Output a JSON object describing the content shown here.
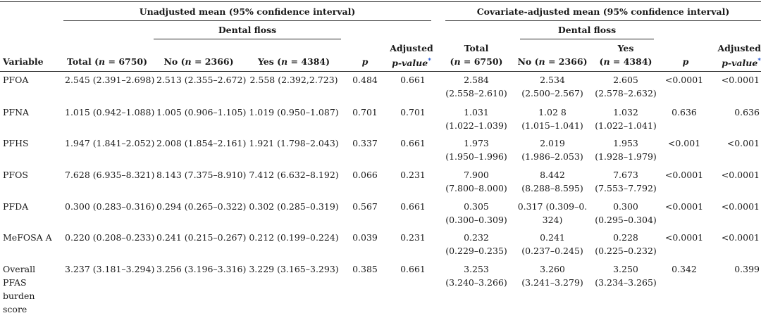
{
  "headers": {
    "unadjusted_group": "Unadjusted mean (95% confidence interval)",
    "adjusted_group": "Covariate-adjusted mean (95% confidence interval)",
    "dental_floss": "Dental floss",
    "variable": "Variable",
    "total": "Total (n = 6750)",
    "no": "No (n = 2366)",
    "yes": "Yes (n = 4384)",
    "p": "p",
    "adjusted_p_1": "Adjusted",
    "adjusted_p_2": "p-value",
    "adjusted_p_star": "*",
    "adj_total_1": "Total",
    "adj_total_2": "(n = 6750)",
    "adj_no": "No (n = 2366)",
    "adj_yes_1": "Yes",
    "adj_yes_2": "(n = 4384)"
  },
  "rows": [
    {
      "variable": [
        "PFOA"
      ],
      "total": "2.545 (2.391–2.698)",
      "no": "2.513 (2.355–2.672)",
      "yes": "2.558 (2.392,2.723)",
      "p": "0.484",
      "adj_p": "0.661",
      "adj_total": [
        "2.584",
        "(2.558–2.610)"
      ],
      "adj_no": [
        "2.534",
        "(2.500–2.567)"
      ],
      "adj_yes": [
        "2.605",
        "(2.578–2.632)"
      ],
      "adj_p_val": "<0.0001",
      "adj_adj_p": "<0.0001"
    },
    {
      "variable": [
        "PFNA"
      ],
      "total": "1.015 (0.942–1.088)",
      "no": "1.005 (0.906–1.105)",
      "yes": "1.019 (0.950–1.087)",
      "p": "0.701",
      "adj_p": "0.701",
      "adj_total": [
        "1.031",
        "(1.022–1.039)"
      ],
      "adj_no": [
        "1.02 8",
        "(1.015–1.041)"
      ],
      "adj_yes": [
        "1.032",
        "(1.022–1.041)"
      ],
      "adj_p_val": "0.636",
      "adj_adj_p": "0.636"
    },
    {
      "variable": [
        "PFHS"
      ],
      "total": "1.947 (1.841–2.052)",
      "no": "2.008 (1.854–2.161)",
      "yes": "1.921 (1.798–2.043)",
      "p": "0.337",
      "adj_p": "0.661",
      "adj_total": [
        "1.973",
        "(1.950–1.996)"
      ],
      "adj_no": [
        "2.019",
        "(1.986–2.053)"
      ],
      "adj_yes": [
        "1.953",
        "(1.928–1.979)"
      ],
      "adj_p_val": "<0.001",
      "adj_adj_p": "<0.001"
    },
    {
      "variable": [
        "PFOS"
      ],
      "total": "7.628 (6.935–8.321)",
      "no": "8.143 (7.375–8.910)",
      "yes": "7.412 (6.632–8.192)",
      "p": "0.066",
      "adj_p": "0.231",
      "adj_total": [
        "7.900",
        "(7.800–8.000)"
      ],
      "adj_no": [
        "8.442",
        "(8.288–8.595)"
      ],
      "adj_yes": [
        "7.673",
        "(7.553–7.792)"
      ],
      "adj_p_val": "<0.0001",
      "adj_adj_p": "<0.0001"
    },
    {
      "variable": [
        "PFDA"
      ],
      "total": "0.300 (0.283–0.316)",
      "no": "0.294 (0.265–0.322)",
      "yes": "0.302 (0.285–0.319)",
      "p": "0.567",
      "adj_p": "0.661",
      "adj_total": [
        "0.305",
        "(0.300–0.309)"
      ],
      "adj_no": [
        "0.317 (0.309–0.",
        "324)"
      ],
      "adj_yes": [
        "0.300",
        "(0.295–0.304)"
      ],
      "adj_p_val": "<0.0001",
      "adj_adj_p": "<0.0001"
    },
    {
      "variable": [
        "MeFOSA A"
      ],
      "total": "0.220 (0.208–0.233)",
      "no": "0.241 (0.215–0.267)",
      "yes": "0.212 (0.199–0.224)",
      "p": "0.039",
      "adj_p": "0.231",
      "adj_total": [
        "0.232",
        "(0.229–0.235)"
      ],
      "adj_no": [
        "0.241",
        "(0.237–0.245)"
      ],
      "adj_yes": [
        "0.228",
        "(0.225–0.232)"
      ],
      "adj_p_val": "<0.0001",
      "adj_adj_p": "<0.0001"
    },
    {
      "variable": [
        "Overall",
        "PFAS",
        "burden",
        "score"
      ],
      "total": "3.237 (3.181–3.294)",
      "no": "3.256 (3.196–3.316)",
      "yes": "3.229 (3.165–3.293)",
      "p": "0.385",
      "adj_p": "0.661",
      "adj_total": [
        "3.253",
        "(3.240–3.266)"
      ],
      "adj_no": [
        "3.260",
        "(3.241–3.279)"
      ],
      "adj_yes": [
        "3.250",
        "(3.234–3.265)"
      ],
      "adj_p_val": "0.342",
      "adj_adj_p": "0.399"
    }
  ]
}
